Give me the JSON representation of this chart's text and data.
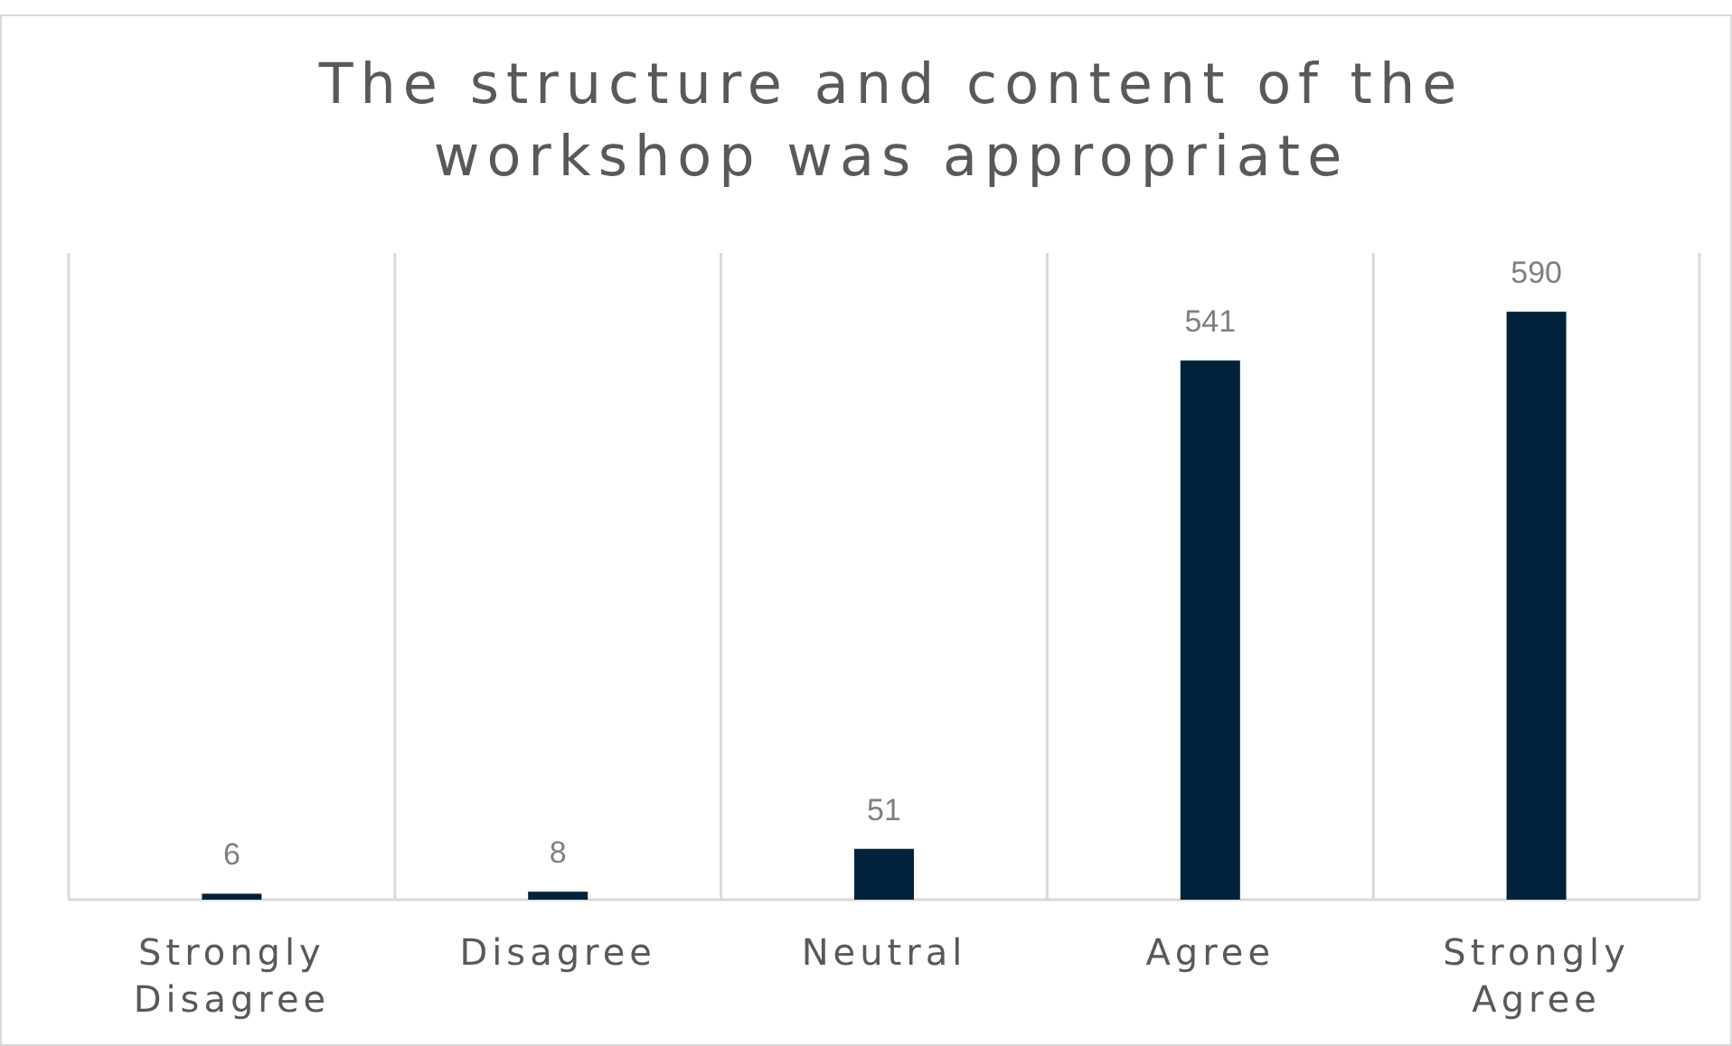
{
  "chart_data": {
    "type": "bar",
    "title": "The structure and content of the workshop was appropriate",
    "categories": [
      "Strongly Disagree",
      "Disagree",
      "Neutral",
      "Agree",
      "Strongly Agree"
    ],
    "values": [
      6,
      8,
      51,
      541,
      590
    ],
    "color": "#00233b",
    "data_labels": true,
    "grid": "x"
  }
}
